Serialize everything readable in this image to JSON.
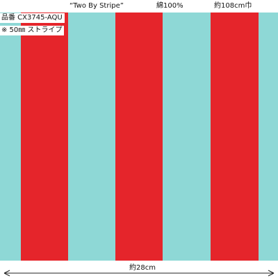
{
  "header": {
    "name": "“Two By Stripe”",
    "material": "綿100%",
    "width": "約108cm巾"
  },
  "labels": {
    "code": "品番 CX3745-AQU",
    "stripe": "※ 50㎜ ストライプ"
  },
  "footer": {
    "swatch_width": "約28cm"
  }
}
